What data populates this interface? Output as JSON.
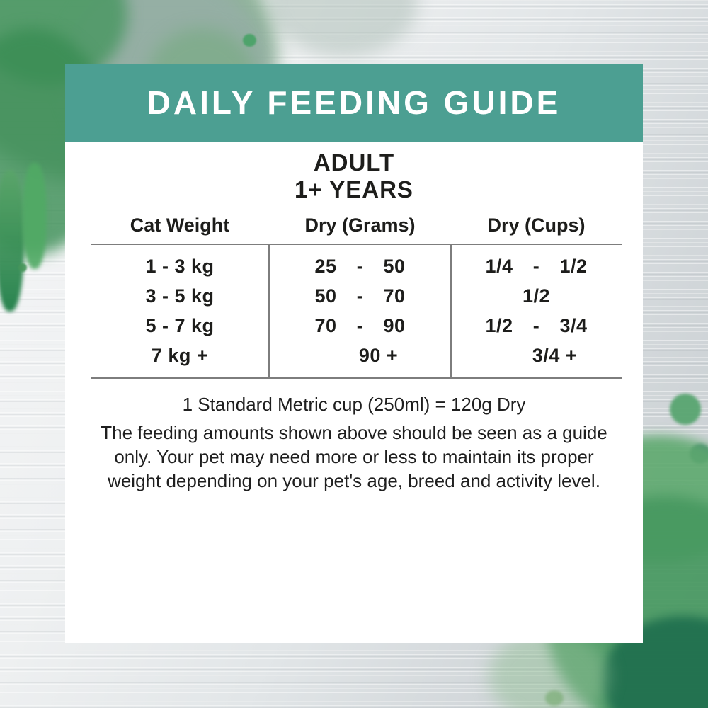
{
  "header": {
    "title": "DAILY FEEDING GUIDE"
  },
  "subtitle": {
    "line1": "ADULT",
    "line2": "1+ YEARS"
  },
  "table": {
    "columns": [
      "Cat Weight",
      "Dry (Grams)",
      "Dry (Cups)"
    ],
    "rows": [
      {
        "weight": "1 - 3 kg",
        "grams": {
          "min": "25",
          "dash": "-",
          "max": "50"
        },
        "cups": {
          "min": "1/4",
          "dash": "-",
          "max": "1/2"
        }
      },
      {
        "weight": "3 - 5 kg",
        "grams": {
          "min": "50",
          "dash": "-",
          "max": "70"
        },
        "cups": {
          "single": "1/2"
        }
      },
      {
        "weight": "5 - 7 kg",
        "grams": {
          "min": "70",
          "dash": "-",
          "max": "90"
        },
        "cups": {
          "min": "1/2",
          "dash": "-",
          "max": "3/4"
        }
      },
      {
        "weight": "7 kg +",
        "grams": {
          "single": "90 +"
        },
        "cups": {
          "single": "3/4 +"
        }
      }
    ]
  },
  "footnote": {
    "cup_equivalence": "1 Standard Metric cup (250ml) = 120g Dry",
    "disclaimer": "The feeding amounts shown above should be seen as a guide only. Your pet may need more or less to maintain its proper weight depending on your pet's age, breed and activity level."
  },
  "colors": {
    "header_teal": "#4C9F92",
    "rule_grey": "#7D7D7D",
    "text_black": "#1D1D1B",
    "splash_green_dark": "#2E7D52",
    "splash_green_mid": "#57A470",
    "wood_grey": "#DFE3E5"
  }
}
